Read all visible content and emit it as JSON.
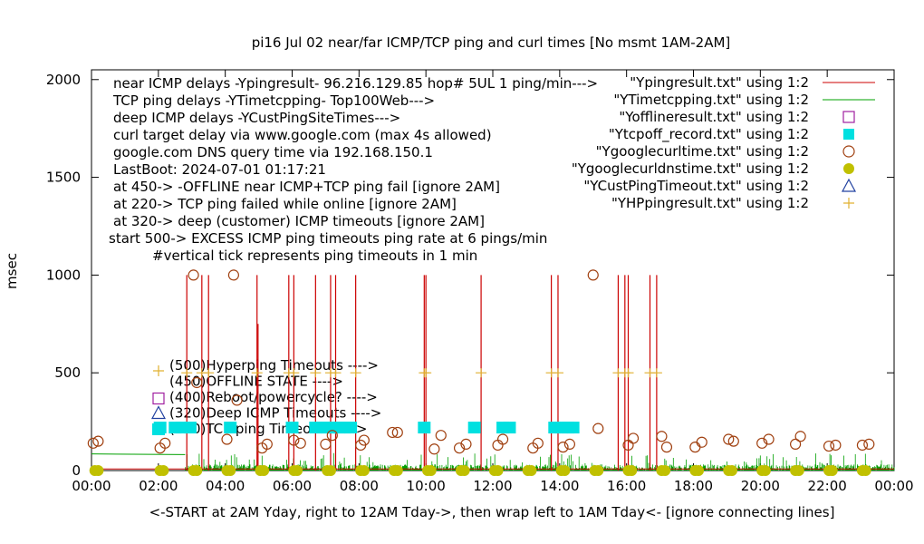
{
  "chart_data": {
    "type": "line",
    "title": "pi16 Jul 02  near/far ICMP/TCP ping and curl times [No msmt 1AM-2AM]",
    "xlabel": "<-START at 2AM Yday, right to 12AM Tday->, then wrap left to 1AM Tday<- [ignore connecting lines]",
    "ylabel": "msec",
    "xlim": [
      0,
      24
    ],
    "ylim": [
      0,
      2050
    ],
    "x_ticks": [
      {
        "v": 0,
        "label": "00:00"
      },
      {
        "v": 2,
        "label": "02:00"
      },
      {
        "v": 4,
        "label": "04:00"
      },
      {
        "v": 6,
        "label": "06:00"
      },
      {
        "v": 8,
        "label": "08:00"
      },
      {
        "v": 10,
        "label": "10:00"
      },
      {
        "v": 12,
        "label": "12:00"
      },
      {
        "v": 14,
        "label": "14:00"
      },
      {
        "v": 16,
        "label": "16:00"
      },
      {
        "v": 18,
        "label": "18:00"
      },
      {
        "v": 20,
        "label": "20:00"
      },
      {
        "v": 22,
        "label": "22:00"
      },
      {
        "v": 24,
        "label": "00:00"
      }
    ],
    "y_ticks": [
      {
        "v": 0,
        "label": "0"
      },
      {
        "v": 500,
        "label": "500"
      },
      {
        "v": 1000,
        "label": "1000"
      },
      {
        "v": 1500,
        "label": "1500"
      },
      {
        "v": 2000,
        "label": "2000"
      }
    ],
    "info_lines": [
      "near ICMP delays -Ypingresult- 96.216.129.85 hop# 5UL 1 ping/min--->",
      "TCP ping delays -YTimetcpping- Top100Web--->",
      "deep ICMP delays -YCustPingSiteTimes--->",
      "curl target delay via www.google.com (max 4s allowed)",
      "google.com DNS query time via 192.168.150.1",
      "LastBoot: 2024-07-01 01:17:21",
      "at 450-> -OFFLINE near ICMP+TCP ping fail [ignore 2AM]",
      "at 220-> TCP ping failed while online [ignore 2AM]",
      "at 320-> deep (customer) ICMP timeouts [ignore 2AM]",
      "start 500-> EXCESS ICMP ping timeouts ping rate at 6 pings/min",
      "#vertical tick represents ping timeouts in 1 min"
    ],
    "inner_legend": [
      {
        "label": "(500)Hyperping Timeouts ---->",
        "marker": "plus",
        "color": "#e0b030"
      },
      {
        "label": "(450)OFFLINE STATE ---->",
        "marker": "open-square",
        "color": "#a020a0"
      },
      {
        "label": "(400)Reboot/powercycle? ---->",
        "marker": "none",
        "color": ""
      },
      {
        "label": "(320)Deep ICMP Timeouts ---->",
        "marker": "open-triangle",
        "color": "#2040a0"
      },
      {
        "label": "(220)TCP ping Timeouts ---->",
        "marker": "filled-square",
        "color": "#00e0e0"
      }
    ],
    "legend_position": "top-right",
    "series": [
      {
        "name": "\"Ypingresult.txt\" using 1:2",
        "style": "line",
        "color": "#cc0000",
        "baseline": 8,
        "spikes": [
          {
            "x": 2.85,
            "y": 1000
          },
          {
            "x": 3.3,
            "y": 1000
          },
          {
            "x": 3.5,
            "y": 1000
          },
          {
            "x": 4.95,
            "y": 1000
          },
          {
            "x": 4.98,
            "y": 750
          },
          {
            "x": 5.9,
            "y": 1000
          },
          {
            "x": 6.05,
            "y": 1000
          },
          {
            "x": 6.7,
            "y": 1000
          },
          {
            "x": 7.15,
            "y": 1000
          },
          {
            "x": 7.3,
            "y": 1000
          },
          {
            "x": 7.9,
            "y": 1000
          },
          {
            "x": 9.95,
            "y": 1000
          },
          {
            "x": 10.0,
            "y": 1000
          },
          {
            "x": 11.65,
            "y": 1000
          },
          {
            "x": 13.75,
            "y": 1000
          },
          {
            "x": 13.95,
            "y": 1000
          },
          {
            "x": 15.75,
            "y": 1000
          },
          {
            "x": 15.95,
            "y": 1000
          },
          {
            "x": 16.05,
            "y": 1000
          },
          {
            "x": 16.7,
            "y": 1000
          },
          {
            "x": 16.9,
            "y": 1000
          }
        ]
      },
      {
        "name": "\"YTimetcpping.txt\" using 1:2",
        "style": "line",
        "color": "#00a000",
        "start": [
          0,
          85
        ],
        "end": [
          2.8,
          82
        ],
        "noise_max": 90
      },
      {
        "name": "\"Yofflineresult.txt\" using 1:2",
        "style": "open-square",
        "color": "#a020a0",
        "points": []
      },
      {
        "name": "\"Ytcpoff_record.txt\" using 1:2",
        "style": "filled-square",
        "color": "#00e0e0",
        "y": 220,
        "x": [
          2.05,
          2.5,
          2.7,
          2.95,
          4.15,
          6.0,
          6.7,
          6.9,
          7.05,
          7.2,
          7.4,
          7.55,
          7.75,
          9.95,
          11.45,
          12.3,
          12.5,
          13.85,
          14.05,
          14.25,
          14.4
        ]
      },
      {
        "name": "\"Ygooglecurltime.txt\" using 1:2",
        "style": "open-circle",
        "color": "#a04010",
        "points": [
          [
            0.05,
            140
          ],
          [
            0.2,
            150
          ],
          [
            2.05,
            115
          ],
          [
            2.2,
            140
          ],
          [
            3.05,
            1000
          ],
          [
            3.15,
            450
          ],
          [
            4.25,
            1000
          ],
          [
            4.35,
            360
          ],
          [
            4.05,
            160
          ],
          [
            5.1,
            115
          ],
          [
            5.25,
            135
          ],
          [
            6.05,
            155
          ],
          [
            6.25,
            140
          ],
          [
            7.0,
            135
          ],
          [
            7.2,
            180
          ],
          [
            8.05,
            130
          ],
          [
            8.15,
            155
          ],
          [
            9.0,
            195
          ],
          [
            9.15,
            195
          ],
          [
            10.25,
            110
          ],
          [
            10.45,
            180
          ],
          [
            11.0,
            115
          ],
          [
            11.2,
            135
          ],
          [
            12.15,
            130
          ],
          [
            12.3,
            160
          ],
          [
            13.2,
            115
          ],
          [
            13.35,
            140
          ],
          [
            14.1,
            120
          ],
          [
            14.3,
            135
          ],
          [
            15.0,
            1000
          ],
          [
            15.15,
            215
          ],
          [
            16.05,
            130
          ],
          [
            16.2,
            165
          ],
          [
            17.05,
            175
          ],
          [
            17.2,
            120
          ],
          [
            18.05,
            120
          ],
          [
            18.25,
            145
          ],
          [
            19.05,
            160
          ],
          [
            19.2,
            150
          ],
          [
            20.05,
            140
          ],
          [
            20.25,
            160
          ],
          [
            21.05,
            135
          ],
          [
            21.2,
            175
          ],
          [
            22.05,
            125
          ],
          [
            22.25,
            130
          ],
          [
            23.05,
            130
          ],
          [
            23.25,
            135
          ]
        ]
      },
      {
        "name": "\"Ygooglecurldnstime.txt\" using 1:2",
        "style": "filled-circle",
        "color": "#c0c000",
        "y": 0,
        "x": [
          0.1,
          0.2,
          2.05,
          2.15,
          3.05,
          3.15,
          4.05,
          4.15,
          5.05,
          5.15,
          6.05,
          6.15,
          7.05,
          7.15,
          8.05,
          8.15,
          9.05,
          9.15,
          10.05,
          10.15,
          11.05,
          11.15,
          12.05,
          12.15,
          13.05,
          13.15,
          14.05,
          14.15,
          15.05,
          15.15,
          16.05,
          16.15,
          17.05,
          17.15,
          18.05,
          18.15,
          19.05,
          19.15,
          20.05,
          20.15,
          21.05,
          21.15,
          22.05,
          22.15,
          23.05,
          23.15
        ]
      },
      {
        "name": "\"YCustPingTimeout.txt\" using 1:2",
        "style": "open-triangle",
        "color": "#2040a0",
        "points": []
      },
      {
        "name": "\"YHPpingresult.txt\" using 1:2",
        "style": "plus",
        "color": "#e0b030",
        "y": 500,
        "x": [
          2.85,
          3.3,
          3.5,
          4.95,
          5.9,
          6.05,
          6.7,
          7.15,
          7.3,
          7.9,
          9.95,
          10.0,
          11.65,
          13.75,
          13.95,
          15.75,
          15.95,
          16.05,
          16.7,
          16.9
        ]
      }
    ]
  }
}
